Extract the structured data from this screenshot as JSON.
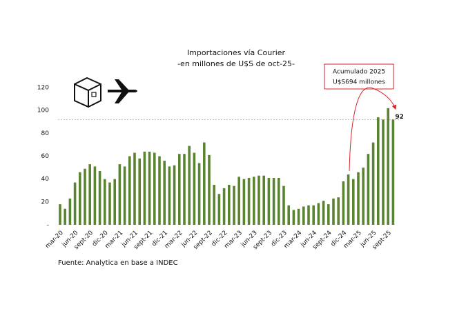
{
  "chart_data": {
    "type": "bar",
    "title": "Importaciones vía Courier",
    "subtitle": "-en millones de U$S de oct-25-",
    "source": "Fuente: Analytica en base a INDEC",
    "annotation": [
      "Acumulado 2025",
      "U$S694 millones"
    ],
    "reference_line": 92,
    "color": "#5b8431",
    "categories": [
      "mar-20",
      null,
      null,
      "jun-20",
      null,
      null,
      "sept-20",
      null,
      null,
      "dic-20",
      null,
      null,
      "mar-21",
      null,
      null,
      "jun-21",
      null,
      null,
      "sept-21",
      null,
      null,
      "dic-21",
      null,
      null,
      "mar-22",
      null,
      null,
      "jun-22",
      null,
      null,
      "sept-22",
      null,
      null,
      "dic-22",
      null,
      null,
      "mar-23",
      null,
      null,
      "jun-23",
      null,
      null,
      "sept-23",
      null,
      null,
      "dic-23",
      null,
      null,
      "mar-24",
      null,
      null,
      "jun-24",
      null,
      null,
      "sept-24",
      null,
      null,
      "dic-24",
      null,
      null,
      "mar-25",
      null,
      null,
      "jun-25",
      null,
      null,
      "sept-25",
      null
    ],
    "values": [
      18,
      14,
      23,
      37,
      46,
      49,
      53,
      51,
      47,
      40,
      37,
      40,
      53,
      51,
      60,
      63,
      58,
      64,
      64,
      63,
      60,
      56,
      51,
      52,
      62,
      62,
      69,
      63,
      54,
      72,
      61,
      35,
      27,
      32,
      35,
      34,
      42,
      40,
      41,
      42,
      43,
      43,
      41,
      41,
      41,
      34,
      17,
      13,
      14,
      16,
      17,
      17,
      19,
      21,
      18,
      23,
      24,
      38,
      44,
      40,
      46,
      50,
      62,
      72,
      94,
      92,
      102,
      92
    ],
    "value_labels": [
      null,
      null,
      null,
      null,
      null,
      null,
      null,
      null,
      null,
      null,
      null,
      null,
      null,
      null,
      null,
      null,
      null,
      null,
      null,
      null,
      null,
      null,
      null,
      null,
      null,
      null,
      null,
      null,
      null,
      null,
      null,
      null,
      null,
      null,
      null,
      null,
      null,
      null,
      null,
      null,
      null,
      null,
      null,
      null,
      null,
      null,
      null,
      null,
      null,
      null,
      null,
      null,
      null,
      null,
      null,
      null,
      null,
      null,
      null,
      null,
      null,
      null,
      null,
      null,
      null,
      null,
      null,
      "92"
    ],
    "ylim": [
      0,
      120
    ],
    "yticks": [
      {
        "value": 0,
        "label": "-"
      },
      20,
      40,
      60,
      80,
      100,
      120
    ]
  }
}
